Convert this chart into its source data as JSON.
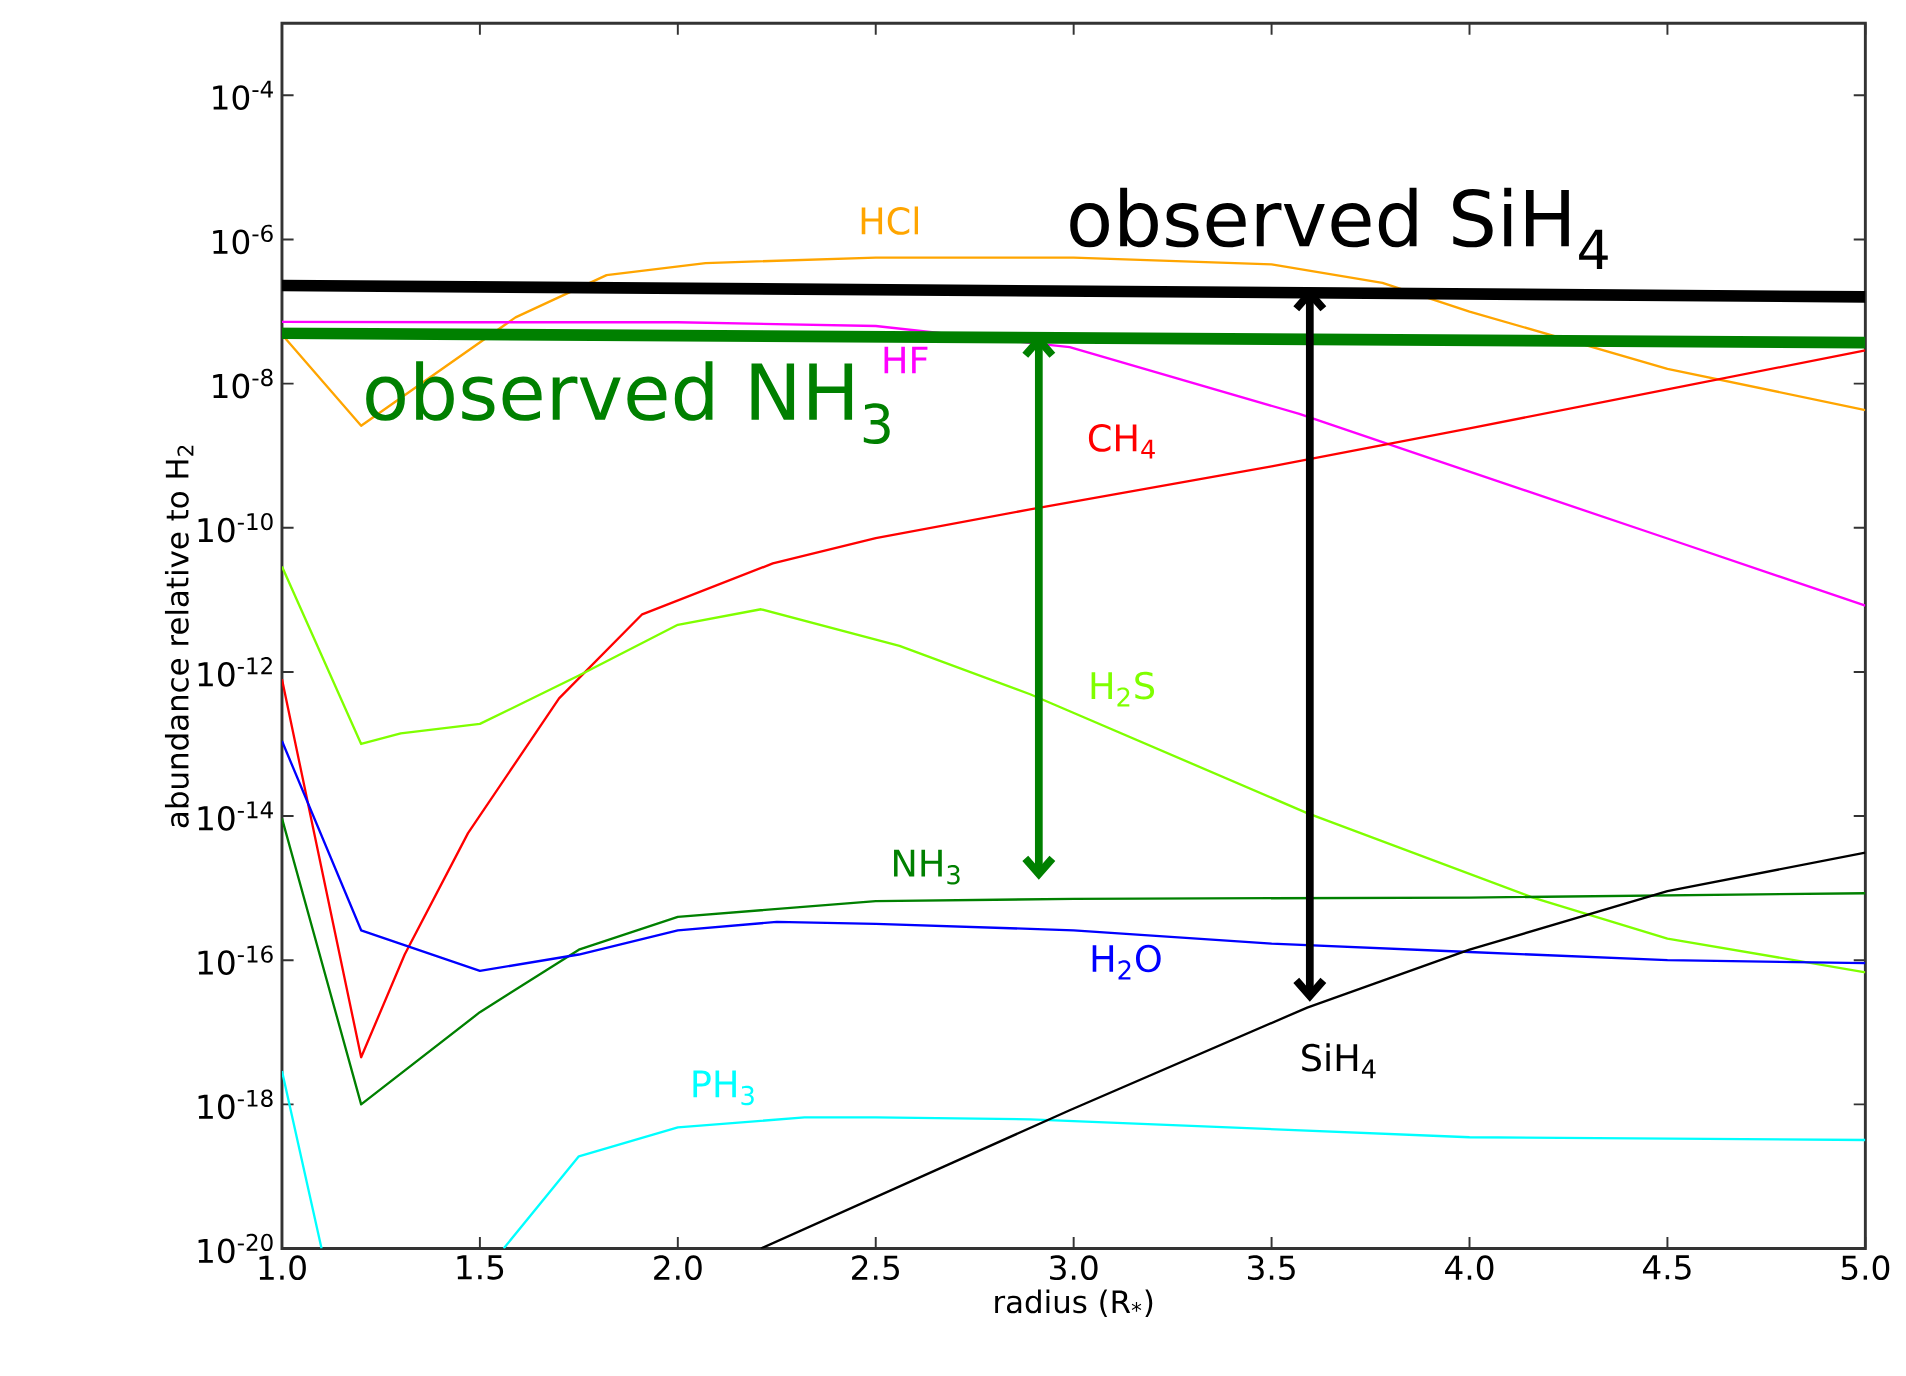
{
  "chart_data": {
    "type": "line",
    "xlabel": "radius (R$_{*}$)",
    "ylabel": "abundance relative to H$_{2}$",
    "log": true,
    "xlim": [
      1,
      5
    ],
    "ylim": [
      1e-20,
      0.001
    ],
    "xticks": [
      {
        "value": 1,
        "label": "1.0"
      },
      {
        "value": 1.5,
        "label": "1.5"
      },
      {
        "value": 2,
        "label": "2.0"
      },
      {
        "value": 2.5,
        "label": "2.5"
      },
      {
        "value": 3,
        "label": "3.0"
      },
      {
        "value": 3.5,
        "label": "3.5"
      },
      {
        "value": 4,
        "label": "4.0"
      },
      {
        "value": 4.5,
        "label": "4.5"
      },
      {
        "value": 5,
        "label": "5.0"
      }
    ],
    "yticks": [
      {
        "value": 1e-20,
        "label": "10$^{-20}$"
      },
      {
        "value": 1e-18,
        "label": "10$^{-18}$"
      },
      {
        "value": 1e-16,
        "label": "10$^{-16}$"
      },
      {
        "value": 1e-14,
        "label": "10$^{-14}$"
      },
      {
        "value": 1e-12,
        "label": "10$^{-12}$"
      },
      {
        "value": 1e-10,
        "label": "10$^{-10}$"
      },
      {
        "value": 1e-08,
        "label": "10$^{-8}$"
      },
      {
        "value": 1e-06,
        "label": "10$^{-6}$"
      },
      {
        "value": 0.0001,
        "label": "10$^{-4}$"
      }
    ],
    "series": [
      {
        "name": "HCl",
        "color": "#ffa500",
        "x": [
          1,
          1.2,
          1.59,
          1.82,
          2.07,
          2.5,
          3.0,
          3.5,
          3.78,
          4.0,
          4.5,
          5.0
        ],
        "values": [
          4.8e-08,
          2.6e-09,
          8.3e-08,
          3.2e-07,
          4.7e-07,
          5.6e-07,
          5.6e-07,
          4.5e-07,
          2.5e-07,
          1e-07,
          1.6e-08,
          4.3e-09
        ]
      },
      {
        "name": "HF",
        "color": "#ff00ff",
        "x": [
          1,
          1.5,
          2.0,
          2.5,
          2.99,
          3.57,
          4.0,
          4.5,
          5.0
        ],
        "values": [
          7.2e-08,
          7.1e-08,
          7.1e-08,
          6.3e-08,
          3.2e-08,
          3.8e-09,
          6e-10,
          7.1e-11,
          8.3e-12
        ]
      },
      {
        "name": "CH$_{4}$",
        "color": "#ff0000",
        "x": [
          1,
          1.2,
          1.31,
          1.47,
          1.7,
          1.91,
          2.24,
          2.5,
          2.89,
          3.5,
          4.0,
          4.5,
          5.0
        ],
        "values": [
          7.9e-13,
          4.5e-18,
          1.2e-16,
          5.8e-15,
          4.3e-13,
          6.3e-12,
          3.2e-11,
          7.2e-11,
          1.8e-10,
          7.1e-10,
          2.4e-09,
          8.3e-09,
          2.9e-08
        ]
      },
      {
        "name": "H$_{2}$S",
        "color": "#7fff00",
        "x": [
          1,
          1.2,
          1.3,
          1.5,
          1.75,
          2.0,
          2.21,
          2.56,
          2.89,
          3.59,
          4.16,
          4.5,
          5.0
        ],
        "values": [
          2.9e-11,
          1e-13,
          1.4e-13,
          1.9e-13,
          8.9e-13,
          4.5e-12,
          7.4e-12,
          2.3e-12,
          4.9e-13,
          1.1e-14,
          7.4e-16,
          2e-16,
          6.8e-17
        ]
      },
      {
        "name": "NH$_{3}$",
        "color": "#008000",
        "x": [
          1,
          1.2,
          1.5,
          1.75,
          2.0,
          2.5,
          3.0,
          4.0,
          5.0
        ],
        "values": [
          9.3e-15,
          1e-18,
          1.9e-17,
          1.4e-16,
          4e-16,
          6.6e-16,
          7.1e-16,
          7.4e-16,
          8.5e-16
        ]
      },
      {
        "name": "H$_{2}$O",
        "color": "#0000ff",
        "x": [
          1,
          1.2,
          1.5,
          1.75,
          2.0,
          2.25,
          2.5,
          3.0,
          3.5,
          4.0,
          4.5,
          5.0
        ],
        "values": [
          1.1e-13,
          2.6e-16,
          7.1e-17,
          1.2e-16,
          2.6e-16,
          3.4e-16,
          3.2e-16,
          2.6e-16,
          1.7e-16,
          1.3e-16,
          1e-16,
          9.1e-17
        ]
      },
      {
        "name": "PH$_{3}$",
        "color": "#00ffff",
        "x": [
          1,
          1.1,
          1.3,
          1.56,
          1.75,
          2.0,
          2.32,
          2.5,
          2.89,
          4.0,
          5.0
        ],
        "values": [
          2.9e-18,
          1e-20,
          null,
          1e-20,
          1.9e-19,
          4.8e-19,
          6.6e-19,
          6.6e-19,
          6.2e-19,
          3.5e-19,
          3.2e-19
        ]
      },
      {
        "name": "SiH$_{4}$",
        "color": "#000000",
        "x": [
          2.21,
          2.99,
          3.59,
          4.0,
          4.5,
          5.0
        ],
        "values": [
          1e-20,
          8.3e-19,
          2.2e-17,
          1.4e-16,
          9.1e-16,
          3.1e-15
        ]
      },
      {
        "name": "observed SiH$_{4}$",
        "color": "#000000",
        "x": [
          1,
          5
        ],
        "values": [
          2.3e-07,
          1.6e-07
        ]
      },
      {
        "name": "observed NH$_{3}$",
        "color": "#008000",
        "x": [
          1,
          5
        ],
        "values": [
          5e-08,
          3.7e-08
        ]
      }
    ]
  }
}
